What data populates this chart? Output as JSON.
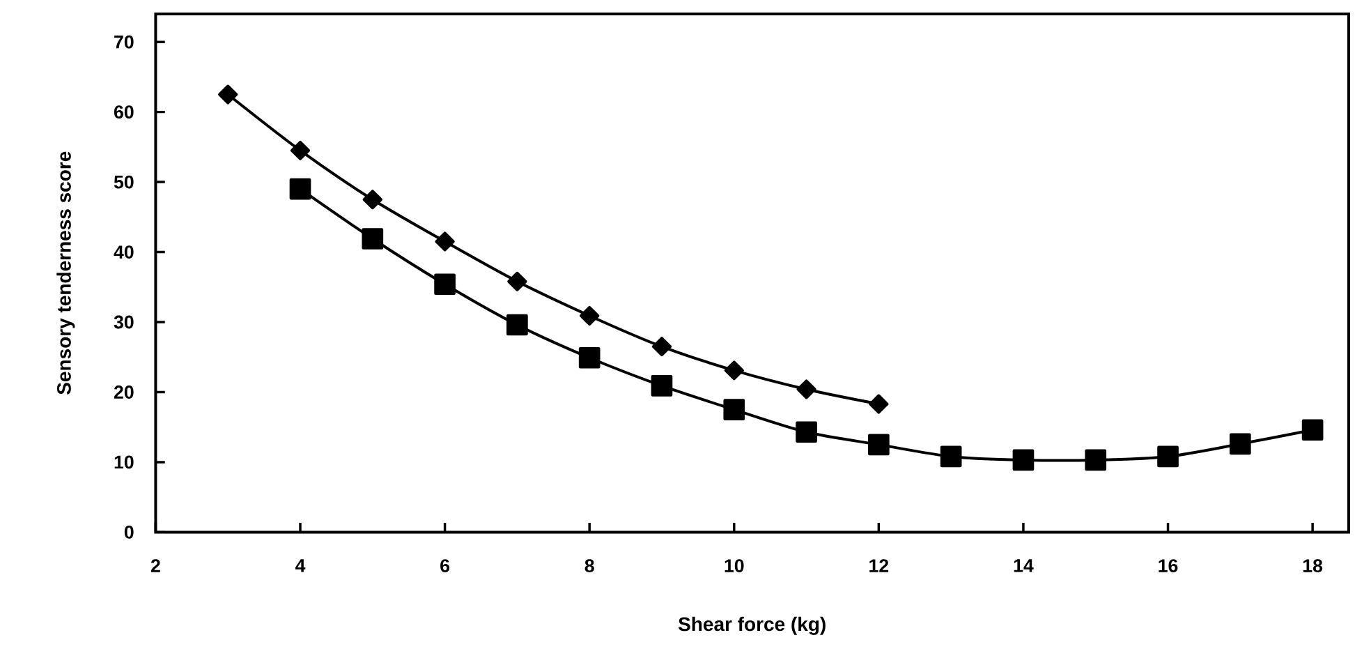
{
  "chart_data": {
    "type": "line",
    "xlabel": "Shear force (kg)",
    "ylabel": "Sensory tenderness score",
    "xlim": [
      2,
      18.5
    ],
    "xticks": [
      2,
      4,
      6,
      8,
      10,
      12,
      14,
      16,
      18
    ],
    "ylim": [
      0,
      74
    ],
    "yticks": [
      0,
      10,
      20,
      30,
      40,
      50,
      60,
      70
    ],
    "grid": false,
    "line_style": "solid",
    "series": [
      {
        "color": "#000000",
        "marker": "diamond",
        "x": [
          3,
          4,
          5,
          6,
          7,
          8,
          9,
          10,
          11,
          12
        ],
        "values": [
          62.5,
          54.5,
          47.5,
          41.5,
          35.8,
          30.9,
          26.5,
          23.1,
          20.4,
          18.3
        ]
      },
      {
        "color": "#000000",
        "marker": "square",
        "x": [
          4,
          5,
          6,
          7,
          8,
          9,
          10,
          11,
          12,
          13,
          14,
          15,
          16,
          17,
          18
        ],
        "values": [
          49.0,
          41.9,
          35.4,
          29.6,
          24.9,
          20.9,
          17.5,
          14.3,
          12.5,
          10.8,
          10.3,
          10.3,
          10.8,
          12.6,
          14.6
        ]
      }
    ]
  }
}
